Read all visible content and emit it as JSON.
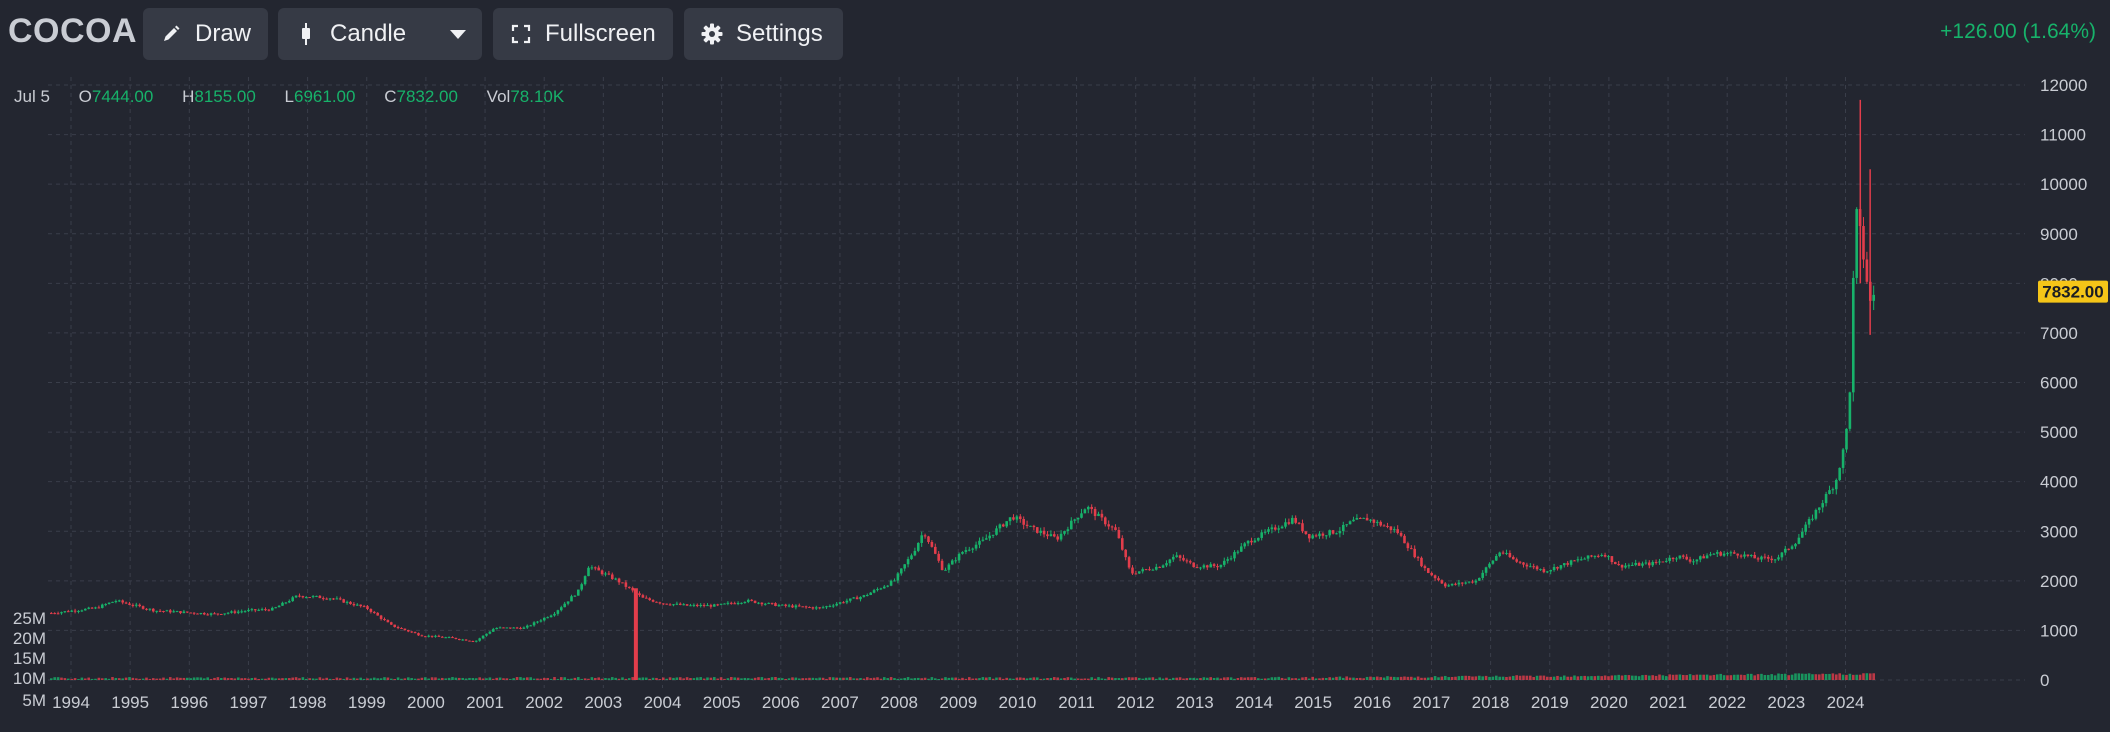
{
  "toolbar": {
    "symbol": "COCOA",
    "draw_label": "Draw",
    "chart_type_label": "Candle",
    "fullscreen_label": "Fullscreen",
    "settings_label": "Settings",
    "change_text": "+126.00 (1.64%)"
  },
  "ohlc": {
    "date": "Jul 5",
    "open_label": "O",
    "open": "7444.00",
    "high_label": "H",
    "high": "8155.00",
    "low_label": "L",
    "low": "6961.00",
    "close_label": "C",
    "close": "7832.00",
    "vol_label": "Vol",
    "vol": "78.10K"
  },
  "colors": {
    "up": "#17b26a",
    "down": "#e23d4b",
    "background": "#232630",
    "grid": "#3a3e4a",
    "last_price": "#f5c518"
  },
  "icons": [
    "pencil-icon",
    "candlestick-icon",
    "chevron-down-icon",
    "fullscreen-icon",
    "gear-icon"
  ],
  "chart_data": {
    "type": "candlestick",
    "last_price": 7832.0,
    "y_ticks": [
      0,
      1000,
      2000,
      3000,
      4000,
      5000,
      6000,
      7000,
      8000,
      9000,
      10000,
      11000,
      12000
    ],
    "ylim": [
      0,
      12000
    ],
    "x_ticks": [
      "1994",
      "1995",
      "1996",
      "1997",
      "1998",
      "1999",
      "2000",
      "2001",
      "2002",
      "2003",
      "2004",
      "2005",
      "2006",
      "2007",
      "2008",
      "2009",
      "2010",
      "2011",
      "2012",
      "2013",
      "2014",
      "2015",
      "2016",
      "2017",
      "2018",
      "2019",
      "2020",
      "2021",
      "2022",
      "2023",
      "2024"
    ],
    "volume_ticks": [
      "25M",
      "20M",
      "15M",
      "10M",
      "5M"
    ],
    "grid": true,
    "price_series": [
      [
        "1993-09",
        1350
      ],
      [
        "1994-06",
        1450
      ],
      [
        "1994-10",
        1600
      ],
      [
        "1995-06",
        1400
      ],
      [
        "1996-06",
        1330
      ],
      [
        "1997-01",
        1400
      ],
      [
        "1997-06",
        1430
      ],
      [
        "1997-11",
        1700
      ],
      [
        "1998-06",
        1650
      ],
      [
        "1999-01",
        1450
      ],
      [
        "1999-06",
        1100
      ],
      [
        "1999-12",
        900
      ],
      [
        "2000-06",
        850
      ],
      [
        "2000-11",
        780
      ],
      [
        "2001-03",
        1050
      ],
      [
        "2001-09",
        1050
      ],
      [
        "2002-03",
        1350
      ],
      [
        "2002-08",
        1800
      ],
      [
        "2002-10",
        2300
      ],
      [
        "2003-04",
        2000
      ],
      [
        "2003-09",
        1650
      ],
      [
        "2004-01",
        1550
      ],
      [
        "2004-06",
        1500
      ],
      [
        "2004-12",
        1500
      ],
      [
        "2005-06",
        1600
      ],
      [
        "2006-01",
        1500
      ],
      [
        "2006-09",
        1450
      ],
      [
        "2007-06",
        1700
      ],
      [
        "2007-12",
        2000
      ],
      [
        "2008-04",
        2600
      ],
      [
        "2008-06",
        3000
      ],
      [
        "2008-10",
        2200
      ],
      [
        "2009-02",
        2600
      ],
      [
        "2009-06",
        2800
      ],
      [
        "2009-12",
        3300
      ],
      [
        "2010-04",
        3050
      ],
      [
        "2010-09",
        2850
      ],
      [
        "2011-03",
        3500
      ],
      [
        "2011-09",
        3000
      ],
      [
        "2011-12",
        2150
      ],
      [
        "2012-06",
        2300
      ],
      [
        "2012-09",
        2500
      ],
      [
        "2013-01",
        2300
      ],
      [
        "2013-06",
        2300
      ],
      [
        "2013-12",
        2800
      ],
      [
        "2014-09",
        3250
      ],
      [
        "2014-12",
        2900
      ],
      [
        "2015-06",
        3000
      ],
      [
        "2015-09",
        3200
      ],
      [
        "2015-12",
        3250
      ],
      [
        "2016-06",
        3000
      ],
      [
        "2016-12",
        2200
      ],
      [
        "2017-04",
        1900
      ],
      [
        "2017-10",
        2000
      ],
      [
        "2018-03",
        2600
      ],
      [
        "2018-06",
        2400
      ],
      [
        "2018-12",
        2200
      ],
      [
        "2019-06",
        2400
      ],
      [
        "2019-12",
        2550
      ],
      [
        "2020-03",
        2300
      ],
      [
        "2020-10",
        2350
      ],
      [
        "2021-03",
        2500
      ],
      [
        "2021-06",
        2400
      ],
      [
        "2021-10",
        2550
      ],
      [
        "2022-03",
        2550
      ],
      [
        "2022-07",
        2450
      ],
      [
        "2022-11",
        2450
      ],
      [
        "2023-03",
        2800
      ],
      [
        "2023-07",
        3400
      ],
      [
        "2023-11",
        4000
      ],
      [
        "2024-01",
        4800
      ],
      [
        "2024-02",
        6000
      ],
      [
        "2024-03",
        9500
      ],
      [
        "2024-04",
        9000
      ],
      [
        "2024-05",
        8300
      ],
      [
        "2024-06",
        7600
      ],
      [
        "2024-07",
        7832
      ]
    ],
    "extreme_wicks": [
      [
        "2024-04",
        11700,
        8000
      ],
      [
        "2024-06",
        10300,
        6961
      ]
    ]
  }
}
